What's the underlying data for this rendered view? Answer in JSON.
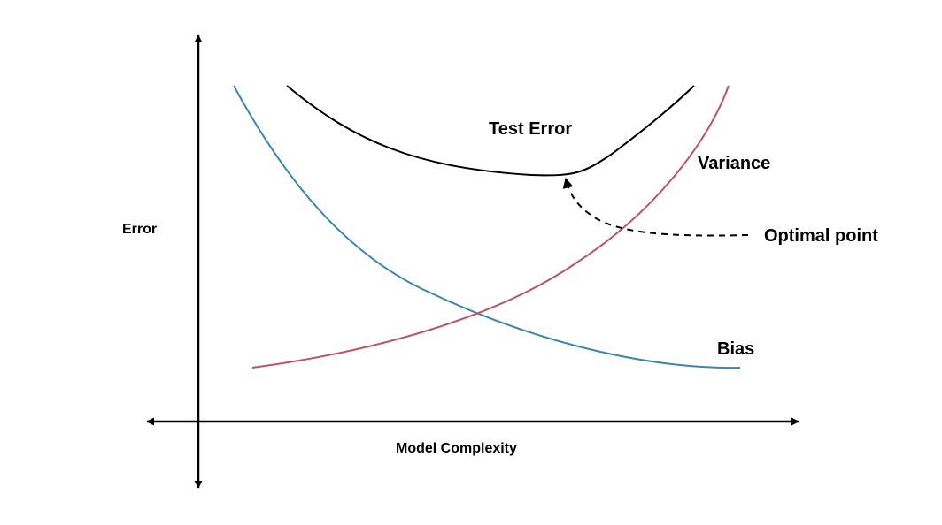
{
  "axes": {
    "y_label": "Error",
    "x_label": "Model Complexity"
  },
  "curves": {
    "test_error": {
      "label": "Test Error",
      "color": "#000000"
    },
    "variance": {
      "label": "Variance",
      "color": "#c0525f"
    },
    "bias": {
      "label": "Bias",
      "color": "#3a86b3"
    }
  },
  "annotation": {
    "label": "Optimal point",
    "style": "dashed-arrow"
  }
}
